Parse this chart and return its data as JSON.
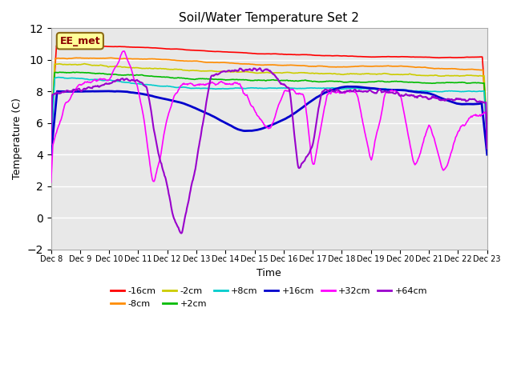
{
  "title": "Soil/Water Temperature Set 2",
  "xlabel": "Time",
  "ylabel": "Temperature (C)",
  "ylim": [
    -2,
    12
  ],
  "yticks": [
    -2,
    0,
    2,
    4,
    6,
    8,
    10,
    12
  ],
  "background_color": "#ffffff",
  "plot_bg_color": "#e8e8e8",
  "annotation_text": "EE_met",
  "annotation_color": "#8B0000",
  "annotation_bg": "#ffff99",
  "series": {
    "-16cm": {
      "color": "#ff0000",
      "lw": 1.2
    },
    "-8cm": {
      "color": "#ff8c00",
      "lw": 1.2
    },
    "-2cm": {
      "color": "#cccc00",
      "lw": 1.2
    },
    "+2cm": {
      "color": "#00bb00",
      "lw": 1.2
    },
    "+8cm": {
      "color": "#00cccc",
      "lw": 1.2
    },
    "+16cm": {
      "color": "#0000cc",
      "lw": 2.0
    },
    "+32cm": {
      "color": "#ff00ff",
      "lw": 1.2
    },
    "+64cm": {
      "color": "#9900cc",
      "lw": 1.5
    }
  },
  "xtick_labels": [
    "Dec 8",
    "Dec 9",
    "Dec 10",
    "Dec 11",
    "Dec 12",
    "Dec 13",
    "Dec 14",
    "Dec 15",
    "Dec 16",
    "Dec 17",
    "Dec 18",
    "Dec 19",
    "Dec 20",
    "Dec 21",
    "Dec 22",
    "Dec 23"
  ],
  "n_points": 720,
  "legend_entries": [
    [
      "-16cm",
      "#ff0000"
    ],
    [
      "-8cm",
      "#ff8c00"
    ],
    [
      "-2cm",
      "#cccc00"
    ],
    [
      "+2cm",
      "#00bb00"
    ],
    [
      "+8cm",
      "#00cccc"
    ],
    [
      "+16cm",
      "#0000cc"
    ],
    [
      "+32cm",
      "#ff00ff"
    ],
    [
      "+64cm",
      "#9900cc"
    ]
  ]
}
